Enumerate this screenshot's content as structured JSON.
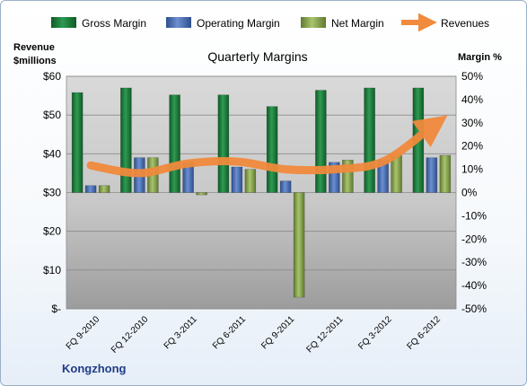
{
  "chart_data": {
    "type": "bar",
    "title": "Quarterly Margins",
    "company": "Kongzhong",
    "categories": [
      "FQ 9-2010",
      "FQ 12-2010",
      "FQ 3-2011",
      "FQ 6-2011",
      "FQ 9-2011",
      "FQ 12-2011",
      "FQ 3-2012",
      "FQ 6-2012"
    ],
    "y_left": {
      "label_line1": "Revenue",
      "label_line2": "$millions",
      "range": [
        0,
        60
      ],
      "ticks": [
        "$-",
        "$10",
        "$20",
        "$30",
        "$40",
        "$50",
        "$60"
      ]
    },
    "y_right": {
      "label": "Margin %",
      "range": [
        -50,
        50
      ],
      "ticks": [
        "-50%",
        "-40%",
        "-30%",
        "-20%",
        "-10%",
        "0%",
        "10%",
        "20%",
        "30%",
        "40%",
        "50%"
      ]
    },
    "series": [
      {
        "name": "Gross Margin",
        "kind": "bar",
        "axis": "right",
        "color": "#1e7a3c",
        "values": [
          43,
          45,
          42,
          42,
          37,
          44,
          45,
          45
        ]
      },
      {
        "name": "Operating Margin",
        "kind": "bar",
        "axis": "right",
        "color": "#4f74b8",
        "values": [
          3,
          15,
          13,
          11,
          5,
          13,
          14,
          15
        ]
      },
      {
        "name": "Net Margin",
        "kind": "bar",
        "axis": "right",
        "color": "#8aa653",
        "values": [
          3,
          15,
          -1,
          10,
          -45,
          14,
          16,
          16
        ]
      },
      {
        "name": "Revenues",
        "kind": "line",
        "axis": "left",
        "color": "#f08a3c",
        "values": [
          37,
          35,
          37.5,
          38,
          36,
          36,
          38,
          47
        ]
      }
    ],
    "legend_position": "top",
    "grid": true
  }
}
